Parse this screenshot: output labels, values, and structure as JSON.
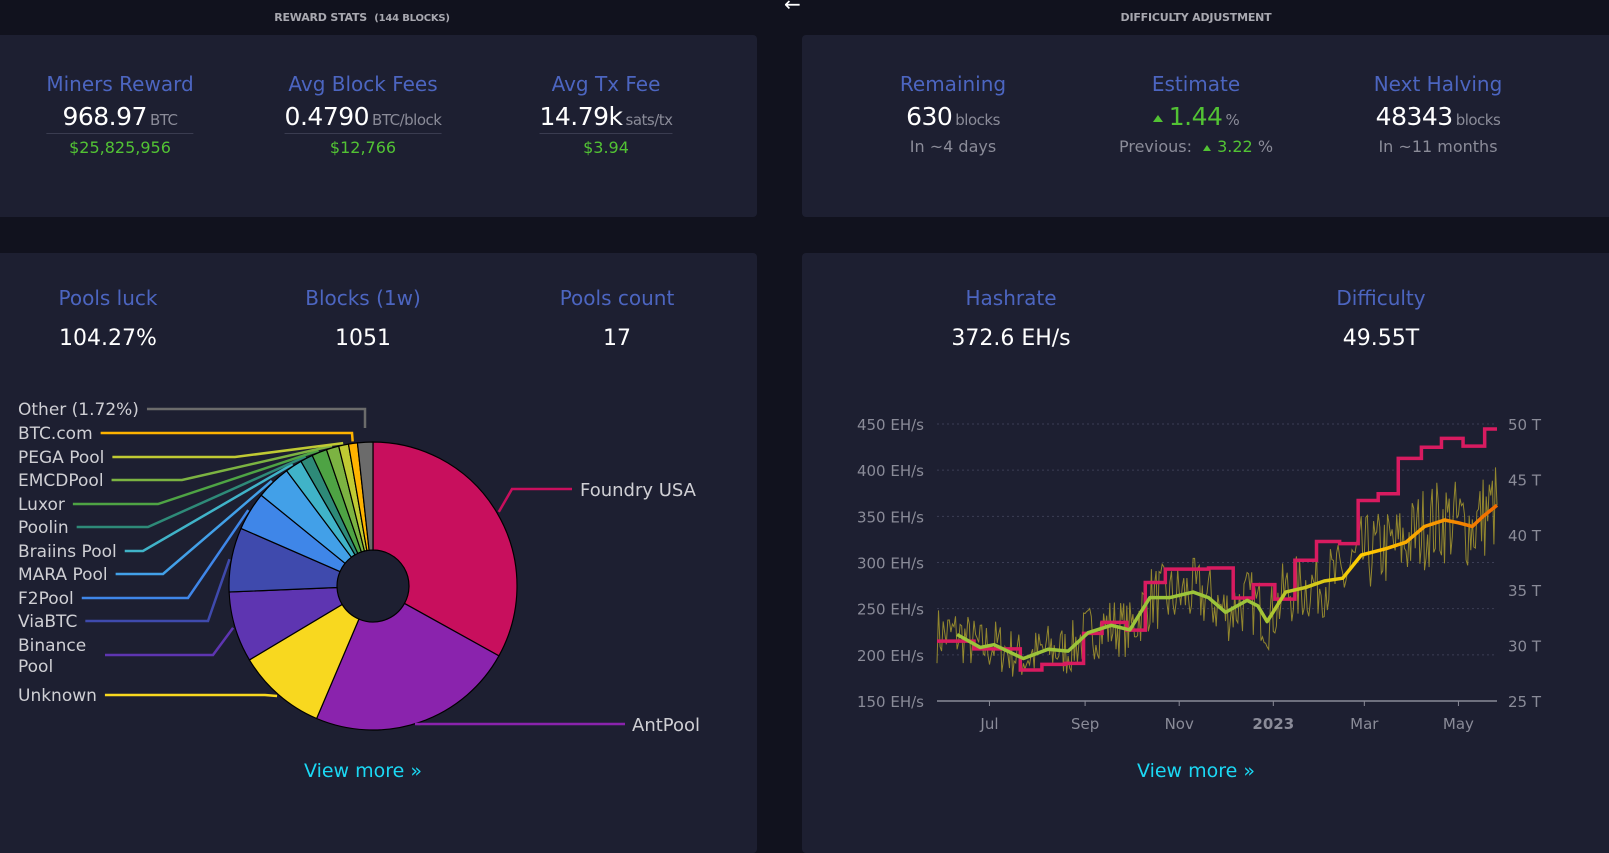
{
  "reward_stats": {
    "header": "REWARD STATS",
    "header_note": "(144 BLOCKS)",
    "items": [
      {
        "title": "Miners Reward",
        "value": "968.97",
        "unit": "BTC",
        "fiat": "$25,825,956"
      },
      {
        "title": "Avg Block Fees",
        "value": "0.4790",
        "unit": "BTC/block",
        "fiat": "$12,766"
      },
      {
        "title": "Avg Tx Fee",
        "value": "14.79k",
        "unit": "sats/tx",
        "fiat": "$3.94"
      }
    ]
  },
  "back_arrow": "←",
  "difficulty_adjustment": {
    "header": "DIFFICULTY ADJUSTMENT",
    "remaining": {
      "title": "Remaining",
      "value": "630",
      "unit": "blocks",
      "sub": "In ~4 days"
    },
    "estimate": {
      "title": "Estimate",
      "value": "1.44",
      "unit": "%",
      "previous_label": "Previous:",
      "previous_value": "3.22",
      "previous_unit": "%",
      "direction": "up"
    },
    "halving": {
      "title": "Next Halving",
      "value": "48343",
      "unit": "blocks",
      "sub": "In ~11 months"
    }
  },
  "pools": {
    "items": [
      {
        "title": "Pools luck",
        "value": "104.27%"
      },
      {
        "title": "Blocks (1w)",
        "value": "1051"
      },
      {
        "title": "Pools count",
        "value": "17"
      }
    ],
    "view_more": "View more »"
  },
  "mining": {
    "items": [
      {
        "title": "Hashrate",
        "value": "372.6 EH/s"
      },
      {
        "title": "Difficulty",
        "value": "49.55T"
      }
    ],
    "view_more": "View more »"
  },
  "chart_data": [
    {
      "type": "pie",
      "donut": true,
      "slices": [
        {
          "label": "Foundry USA",
          "share": 33.0,
          "color": "#c80f5d"
        },
        {
          "label": "AntPool",
          "share": 23.3,
          "color": "#8a23ad"
        },
        {
          "label": "Unknown",
          "share": 10.0,
          "color": "#f8d81f"
        },
        {
          "label": "Binance Pool",
          "share": 7.9,
          "color": "#5e35b1"
        },
        {
          "label": "ViaBTC",
          "share": 7.2,
          "color": "#3f4aad"
        },
        {
          "label": "F2Pool",
          "share": 4.3,
          "color": "#3f86e8"
        },
        {
          "label": "MARA Pool",
          "share": 3.9,
          "color": "#42a0e8"
        },
        {
          "label": "Braiins Pool",
          "share": 1.9,
          "color": "#40b3c8"
        },
        {
          "label": "Poolin",
          "share": 1.4,
          "color": "#2e8a78"
        },
        {
          "label": "Luxor",
          "share": 1.7,
          "color": "#4ea344"
        },
        {
          "label": "EMCDPool",
          "share": 1.4,
          "color": "#7cb342"
        },
        {
          "label": "PEGA Pool",
          "share": 1.1,
          "color": "#c0ca33"
        },
        {
          "label": "BTC.com",
          "share": 1.0,
          "color": "#ffb300"
        },
        {
          "label": "Other (1.72%)",
          "share": 1.72,
          "color": "#6b6b6b"
        }
      ]
    },
    {
      "type": "line",
      "xrange": [
        "2022-05-28",
        "2023-05-26"
      ],
      "x_ticks": [
        {
          "date": "2022-07-01",
          "label": "Jul"
        },
        {
          "date": "2022-09-01",
          "label": "Sep"
        },
        {
          "date": "2022-11-01",
          "label": "Nov"
        },
        {
          "date": "2023-01-01",
          "label": "2023",
          "bold": true
        },
        {
          "date": "2023-03-01",
          "label": "Mar"
        },
        {
          "date": "2023-05-01",
          "label": "May"
        }
      ],
      "y_left": {
        "ticks": [
          "150 EH/s",
          "200 EH/s",
          "250 EH/s",
          "300 EH/s",
          "350 EH/s",
          "400 EH/s",
          "450 EH/s"
        ],
        "range": [
          150,
          450
        ]
      },
      "y_right": {
        "ticks": [
          "25 T",
          "30 T",
          "35 T",
          "40 T",
          "45 T",
          "50 T"
        ],
        "range": [
          25,
          50
        ]
      },
      "grid": true,
      "difficulty_T": [
        [
          "2022-05-28",
          30.4
        ],
        [
          "2022-06-21",
          29.7
        ],
        [
          "2022-07-21",
          27.8
        ],
        [
          "2022-08-04",
          28.3
        ],
        [
          "2022-08-19",
          28.4
        ],
        [
          "2022-08-31",
          31.1
        ],
        [
          "2022-09-12",
          32.1
        ],
        [
          "2022-09-28",
          31.4
        ],
        [
          "2022-10-10",
          35.7
        ],
        [
          "2022-10-23",
          36.9
        ],
        [
          "2022-11-20",
          37.0
        ],
        [
          "2022-12-06",
          34.3
        ],
        [
          "2022-12-19",
          35.5
        ],
        [
          "2023-01-02",
          34.2
        ],
        [
          "2023-01-15",
          37.7
        ],
        [
          "2023-01-29",
          39.4
        ],
        [
          "2023-02-13",
          39.2
        ],
        [
          "2023-02-25",
          43.1
        ],
        [
          "2023-03-10",
          43.7
        ],
        [
          "2023-03-23",
          46.9
        ],
        [
          "2023-04-07",
          47.9
        ],
        [
          "2023-04-20",
          48.7
        ],
        [
          "2023-05-04",
          48.0
        ],
        [
          "2023-05-18",
          49.55
        ],
        [
          "2023-05-26",
          49.55
        ]
      ],
      "hashrate_avg_EH": [
        [
          "2022-06-10",
          222
        ],
        [
          "2022-06-25",
          208
        ],
        [
          "2022-07-04",
          211
        ],
        [
          "2022-07-23",
          196
        ],
        [
          "2022-08-08",
          206
        ],
        [
          "2022-08-21",
          204
        ],
        [
          "2022-09-03",
          224
        ],
        [
          "2022-09-18",
          232
        ],
        [
          "2022-09-30",
          227
        ],
        [
          "2022-10-13",
          262
        ],
        [
          "2022-10-26",
          262
        ],
        [
          "2022-11-10",
          268
        ],
        [
          "2022-11-20",
          262
        ],
        [
          "2022-12-01",
          246
        ],
        [
          "2022-12-15",
          259
        ],
        [
          "2022-12-22",
          253
        ],
        [
          "2022-12-28",
          236
        ],
        [
          "2023-01-09",
          268
        ],
        [
          "2023-01-22",
          273
        ],
        [
          "2023-02-03",
          280
        ],
        [
          "2023-02-15",
          283
        ],
        [
          "2023-02-27",
          308
        ],
        [
          "2023-03-15",
          315
        ],
        [
          "2023-03-28",
          322
        ],
        [
          "2023-04-09",
          339
        ],
        [
          "2023-04-22",
          346
        ],
        [
          "2023-05-01",
          343
        ],
        [
          "2023-05-10",
          339
        ],
        [
          "2023-05-17",
          350
        ],
        [
          "2023-05-26",
          362
        ]
      ],
      "colors": {
        "difficulty": "#d81b60",
        "hashrate_start": "#9cc43a",
        "hashrate_mid": "#ffcc00",
        "hashrate_end": "#f06a00",
        "hashrate_raw": "#a89a2e"
      }
    }
  ]
}
